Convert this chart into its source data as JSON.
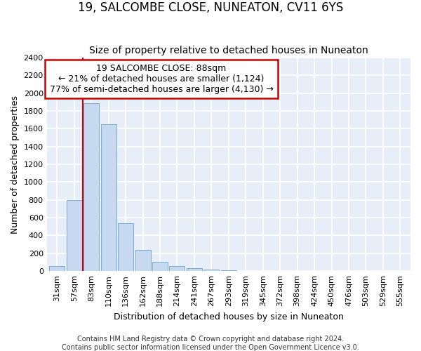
{
  "title": "19, SALCOMBE CLOSE, NUNEATON, CV11 6YS",
  "subtitle": "Size of property relative to detached houses in Nuneaton",
  "xlabel": "Distribution of detached houses by size in Nuneaton",
  "ylabel": "Number of detached properties",
  "categories": [
    "31sqm",
    "57sqm",
    "83sqm",
    "110sqm",
    "136sqm",
    "162sqm",
    "188sqm",
    "214sqm",
    "241sqm",
    "267sqm",
    "293sqm",
    "319sqm",
    "345sqm",
    "372sqm",
    "398sqm",
    "424sqm",
    "450sqm",
    "476sqm",
    "503sqm",
    "529sqm",
    "555sqm"
  ],
  "values": [
    55,
    800,
    1890,
    1650,
    535,
    240,
    105,
    55,
    30,
    18,
    10,
    5,
    0,
    0,
    0,
    0,
    0,
    0,
    0,
    0,
    0
  ],
  "bar_color": "#c6d9f0",
  "bar_edge_color": "#7aadcf",
  "highlight_bar_index": 2,
  "highlight_color": "#cc0000",
  "annotation_title": "19 SALCOMBE CLOSE: 88sqm",
  "annotation_line1": "← 21% of detached houses are smaller (1,124)",
  "annotation_line2": "77% of semi-detached houses are larger (4,130) →",
  "annotation_box_facecolor": "#ffffff",
  "annotation_box_edgecolor": "#cc0000",
  "ylim": [
    0,
    2400
  ],
  "yticks": [
    0,
    200,
    400,
    600,
    800,
    1000,
    1200,
    1400,
    1600,
    1800,
    2000,
    2200,
    2400
  ],
  "footer_line1": "Contains HM Land Registry data © Crown copyright and database right 2024.",
  "footer_line2": "Contains public sector information licensed under the Open Government Licence v3.0.",
  "bg_color": "#ffffff",
  "plot_bg_color": "#e8eef7",
  "grid_color": "#ffffff",
  "title_fontsize": 12,
  "subtitle_fontsize": 10,
  "axis_label_fontsize": 9,
  "tick_fontsize": 8,
  "annotation_fontsize": 9,
  "footer_fontsize": 7
}
